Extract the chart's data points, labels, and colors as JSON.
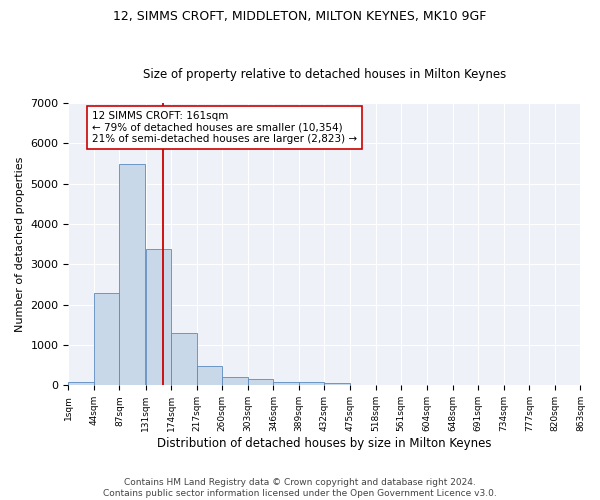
{
  "title": "12, SIMMS CROFT, MIDDLETON, MILTON KEYNES, MK10 9GF",
  "subtitle": "Size of property relative to detached houses in Milton Keynes",
  "xlabel": "Distribution of detached houses by size in Milton Keynes",
  "ylabel": "Number of detached properties",
  "bar_color": "#c8d8e8",
  "bar_edge_color": "#5a8abf",
  "bar_left_edges": [
    1,
    44,
    87,
    131,
    174,
    217,
    260,
    303,
    346,
    389,
    432,
    475,
    518,
    561,
    604,
    648,
    691,
    734,
    777,
    820
  ],
  "bar_heights": [
    75,
    2280,
    5480,
    3380,
    1290,
    490,
    200,
    165,
    95,
    80,
    50,
    0,
    0,
    0,
    0,
    0,
    0,
    0,
    0,
    0
  ],
  "bin_width": 43,
  "tick_labels": [
    "1sqm",
    "44sqm",
    "87sqm",
    "131sqm",
    "174sqm",
    "217sqm",
    "260sqm",
    "303sqm",
    "346sqm",
    "389sqm",
    "432sqm",
    "475sqm",
    "518sqm",
    "561sqm",
    "604sqm",
    "648sqm",
    "691sqm",
    "734sqm",
    "777sqm",
    "820sqm",
    "863sqm"
  ],
  "vline_x": 161,
  "vline_color": "#cc0000",
  "annotation_text": "12 SIMMS CROFT: 161sqm\n← 79% of detached houses are smaller (10,354)\n21% of semi-detached houses are larger (2,823) →",
  "annotation_box_color": "#ffffff",
  "annotation_box_edge": "#cc0000",
  "ylim": [
    0,
    7000
  ],
  "yticks": [
    0,
    1000,
    2000,
    3000,
    4000,
    5000,
    6000,
    7000
  ],
  "bg_color": "#eef2f8",
  "footer_text": "Contains HM Land Registry data © Crown copyright and database right 2024.\nContains public sector information licensed under the Open Government Licence v3.0.",
  "title_fontsize": 9,
  "subtitle_fontsize": 8.5,
  "xlabel_fontsize": 8.5,
  "ylabel_fontsize": 8,
  "annotation_fontsize": 7.5,
  "footer_fontsize": 6.5,
  "tick_fontsize": 6.5
}
